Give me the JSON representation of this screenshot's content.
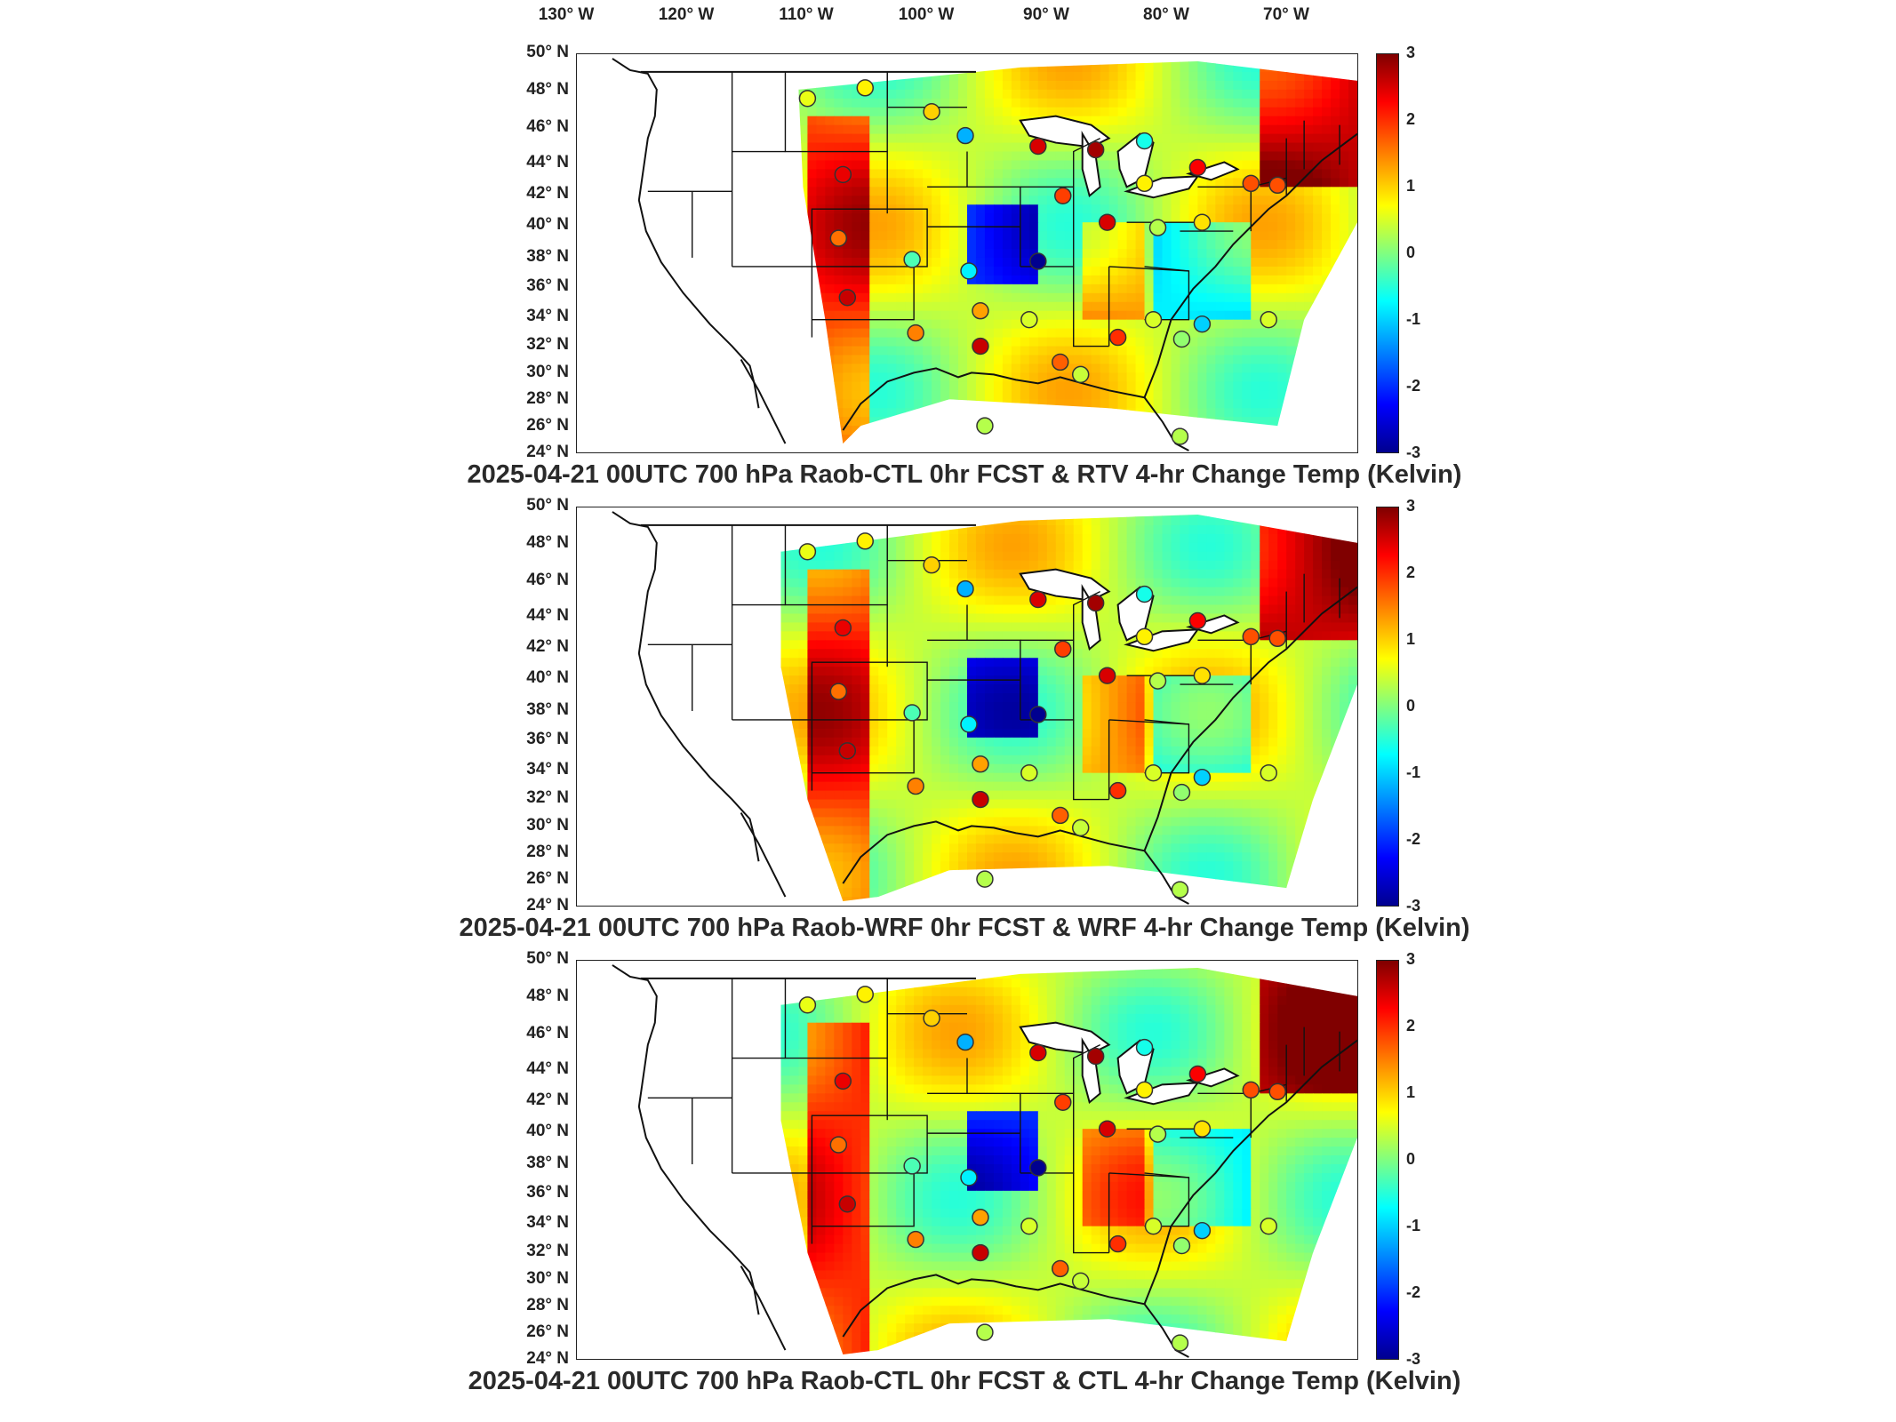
{
  "longitude_labels": [
    "130° W",
    "120° W",
    "110° W",
    "100° W",
    "90° W",
    "80° W",
    "70° W"
  ],
  "latitude_labels": [
    "50° N",
    "48° N",
    "46° N",
    "44° N",
    "42° N",
    "40° N",
    "38° N",
    "36° N",
    "34° N",
    "32° N",
    "30° N",
    "28° N",
    "26° N",
    "24° N"
  ],
  "colorbar": {
    "ticks": [
      "3",
      "2",
      "1",
      "0",
      "-1",
      "-2",
      "-3"
    ],
    "colors": [
      "#00008f",
      "#0000ff",
      "#0080ff",
      "#00ffff",
      "#80ff80",
      "#ffff00",
      "#ff8000",
      "#ff0000",
      "#800000"
    ]
  },
  "panels": [
    {
      "title": "2025-04-21 00UTC 700 hPa Raob-CTL 0hr FCST & RTV 4-hr Change Temp (Kelvin)"
    },
    {
      "title": "2025-04-21 00UTC 700 hPa Raob-WRF 0hr FCST & WRF 4-hr Change Temp (Kelvin)"
    },
    {
      "title": "2025-04-21 00UTC 700 hPa Raob-CTL 0hr FCST & CTL 4-hr Change Temp (Kelvin)"
    }
  ]
}
